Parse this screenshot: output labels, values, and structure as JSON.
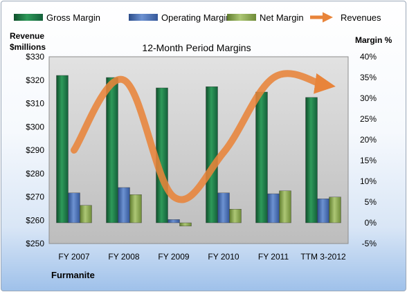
{
  "chart_data": {
    "type": "bar",
    "title": "12-Month Period Margins",
    "company": "Furmanite",
    "categories": [
      "FY 2007",
      "FY 2008",
      "FY 2009",
      "FY 2010",
      "FY 2011",
      "TTM 3-2012"
    ],
    "left_axis": {
      "label_line1": "Revenue",
      "label_line2": "$millions",
      "ylim": [
        250,
        330
      ],
      "ticks": [
        "$250",
        "$260",
        "$270",
        "$280",
        "$290",
        "$300",
        "$310",
        "$320",
        "$330"
      ]
    },
    "right_axis": {
      "label": "Margin %",
      "ylim": [
        -5,
        40
      ],
      "ticks": [
        "-5%",
        "0%",
        "5%",
        "10%",
        "15%",
        "20%",
        "25%",
        "30%",
        "35%",
        "40%"
      ]
    },
    "series": [
      {
        "name": "Gross Margin",
        "axis": "right",
        "values": [
          35.5,
          35.0,
          32.5,
          32.8,
          31.5,
          30.2
        ],
        "color": "#1f7a45"
      },
      {
        "name": "Operating Margin",
        "axis": "right",
        "values": [
          7.2,
          8.5,
          0.8,
          7.2,
          7.0,
          5.8
        ],
        "color": "#4f74b7"
      },
      {
        "name": "Net Margin",
        "axis": "right",
        "values": [
          4.2,
          6.8,
          -0.8,
          3.3,
          7.7,
          6.2
        ],
        "color": "#8fad54"
      },
      {
        "name": "Revenues",
        "axis": "left",
        "values": [
          290,
          320,
          270,
          289,
          321,
          318
        ],
        "color": "#e8843a"
      }
    ],
    "legend_position": "top",
    "grid": false
  }
}
